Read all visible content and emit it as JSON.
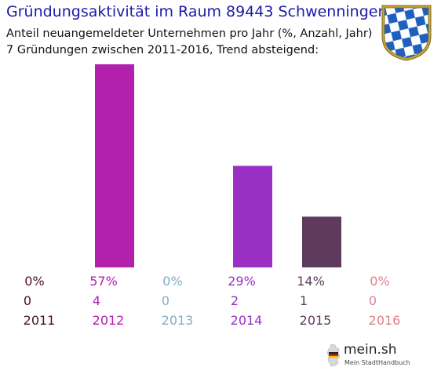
{
  "chart_data": {
    "type": "bar",
    "title": "Gründungsaktivität im Raum 89443 Schwenningen",
    "subtitle": [
      "Anteil neuangemeldeter Unternehmen pro Jahr (%, Anzahl, Jahr)",
      "7 Gründungen zwischen 2011-2016, Trend absteigend:"
    ],
    "categories": [
      "2011",
      "2012",
      "2013",
      "2014",
      "2015",
      "2016"
    ],
    "percent_labels": [
      "0%",
      "57%",
      "0%",
      "29%",
      "14%",
      "0%"
    ],
    "values": [
      0,
      4,
      0,
      2,
      1,
      0
    ],
    "colors": [
      "#4a0f2a",
      "#b320ac",
      "#7fb0c3",
      "#9a2fc4",
      "#5e3b5c",
      "#e07f8c"
    ],
    "ylim": [
      0,
      4
    ],
    "grid": false,
    "xlabel": "",
    "ylabel": ""
  },
  "logo": {
    "name": "mein.sh",
    "tagline": "Mein StadtHandbuch",
    "icon": "germany-map-icon"
  },
  "crest": {
    "icon": "bavarian-coat-of-arms-icon",
    "colors": [
      "#1e5fc0",
      "#ffffff",
      "#c8a838"
    ]
  }
}
